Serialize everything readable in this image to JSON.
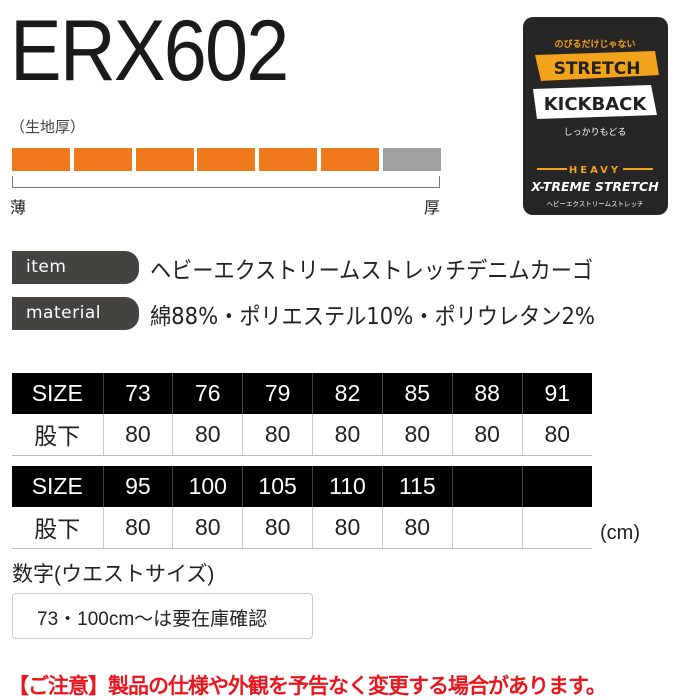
{
  "title": "ERX602",
  "thickness": {
    "label": "（生地厚）",
    "level": 6,
    "max": 7,
    "min_label": "薄",
    "max_label": "厚",
    "fill_color": "#ee7a1c",
    "empty_color": "#a0a0a0"
  },
  "badge": {
    "top_text": "のびるだけじゃない",
    "stretch": "STRETCH",
    "kickback": "KICKBACK",
    "kickback_sub": "しっかりもどる",
    "heavy": "HEAVY",
    "xtreme": "X-TREME STRETCH",
    "bottom_text": "ヘビーエクストリームストレッチ"
  },
  "specs": [
    {
      "label": "item",
      "value": "ヘビーエクストリームストレッチデニムカーゴ"
    },
    {
      "label": "material",
      "value": "綿88%・ポリエステル10%・ポリウレタン2%"
    }
  ],
  "size_tables": [
    {
      "header": "SIZE",
      "row_label": "股下",
      "sizes": [
        "73",
        "76",
        "79",
        "82",
        "85",
        "88",
        "91"
      ],
      "inseam": [
        "80",
        "80",
        "80",
        "80",
        "80",
        "80",
        "80"
      ]
    },
    {
      "header": "SIZE",
      "row_label": "股下",
      "sizes": [
        "95",
        "100",
        "105",
        "110",
        "115",
        "",
        ""
      ],
      "inseam": [
        "80",
        "80",
        "80",
        "80",
        "80",
        "",
        ""
      ]
    }
  ],
  "unit": "(cm)",
  "size_note": "数字(ウエストサイズ)",
  "stock_note": "73・100cm～は要在庫確認",
  "caution": "【ご注意】製品の仕様や外観を予告なく変更する場合があります。"
}
